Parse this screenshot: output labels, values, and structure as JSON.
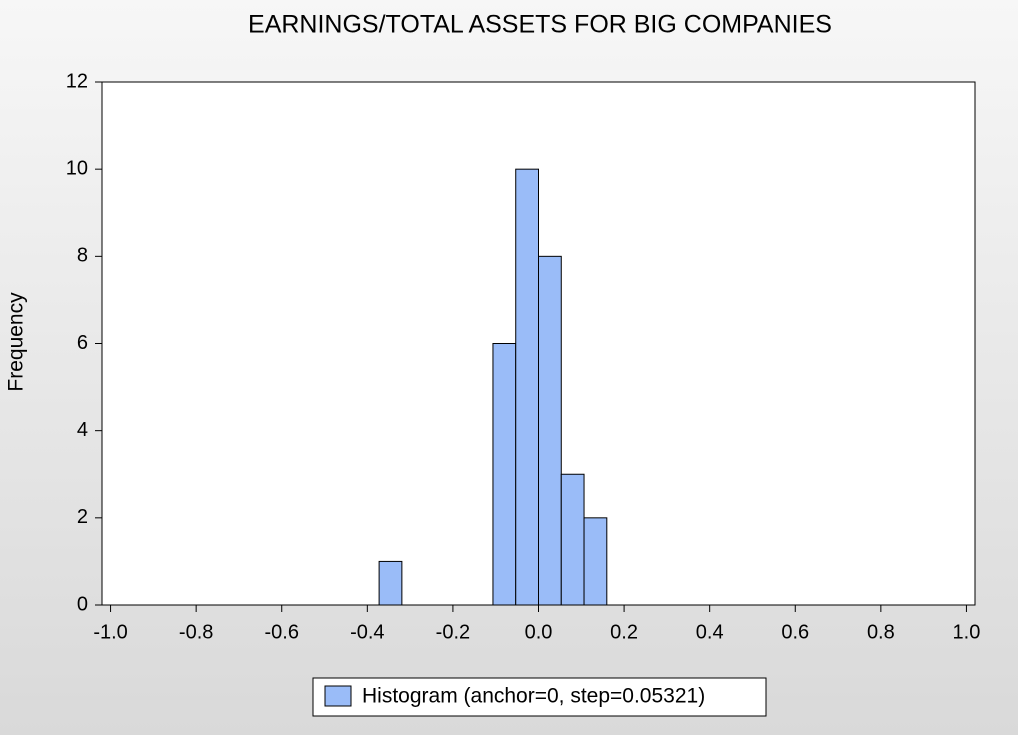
{
  "chart_data": {
    "type": "histogram",
    "title": "EARNINGS/TOTAL ASSETS FOR BIG COMPANIES",
    "y_label": "Frequency",
    "bins": [
      -0.37247,
      -0.31926,
      -0.26605,
      -0.21284,
      -0.15963,
      -0.10642,
      -0.05321,
      0,
      0.05321,
      0.10642,
      0.15963
    ],
    "series": [
      {
        "name": "Histogram (anchor=0, step=0.05321)",
        "color": "#9abcf8",
        "values": [
          1,
          0,
          0,
          0,
          0,
          6,
          10,
          8,
          3,
          2
        ]
      }
    ],
    "xlim": [
      -1.02,
      1.02
    ],
    "xticks": [
      {
        "value": -1,
        "label": "-1.0"
      },
      {
        "value": -0.8,
        "label": "-0.8"
      },
      {
        "value": -0.6,
        "label": "-0.6"
      },
      {
        "value": -0.4,
        "label": "-0.4"
      },
      {
        "value": -0.2,
        "label": "-0.2"
      },
      {
        "value": 0,
        "label": "0.0"
      },
      {
        "value": 0.2,
        "label": "0.2"
      },
      {
        "value": 0.4,
        "label": "0.4"
      },
      {
        "value": 0.6,
        "label": "0.6"
      },
      {
        "value": 0.8,
        "label": "0.8"
      },
      {
        "value": 1,
        "label": "1.0"
      }
    ],
    "ylim": [
      0,
      12
    ],
    "yticks": [
      0,
      2,
      4,
      6,
      8,
      10,
      12
    ],
    "grid": false
  }
}
